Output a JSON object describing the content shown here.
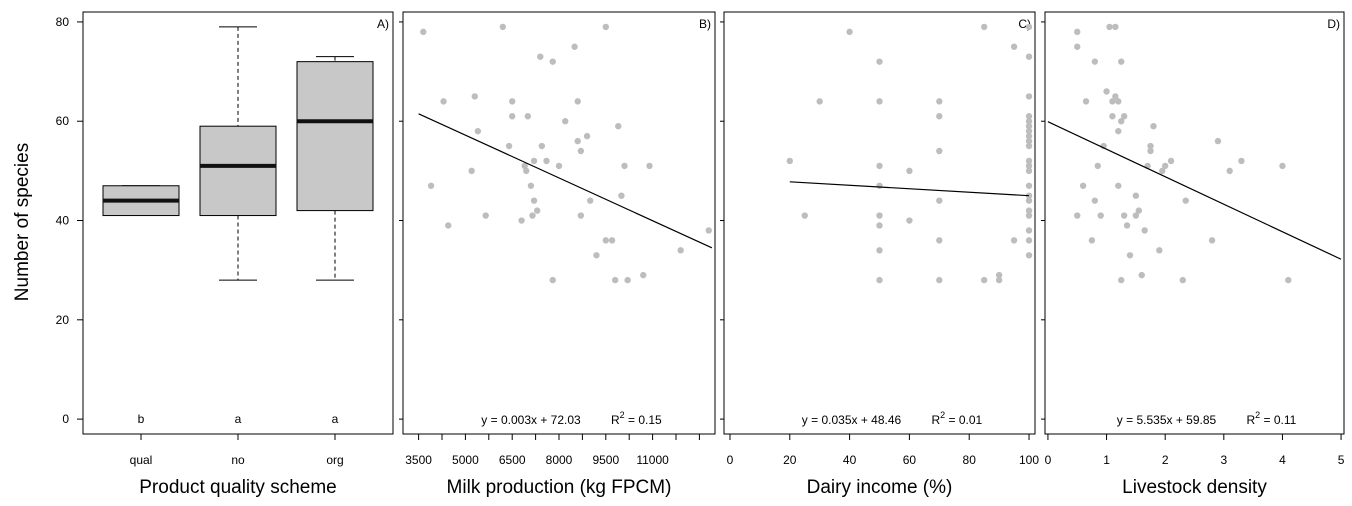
{
  "ylabel": "Number of species",
  "y_ticks": [
    "0",
    "20",
    "40",
    "60",
    "80"
  ],
  "chart_data": [
    {
      "type": "box",
      "panel": "A)",
      "xlabel": "Product quality scheme",
      "categories": [
        "qual",
        "no",
        "org"
      ],
      "ylim": [
        -3,
        82
      ],
      "boxes": [
        {
          "name": "qual",
          "min": 41,
          "q1": 41,
          "median": 44,
          "q3": 47,
          "max": 47,
          "letter": "b"
        },
        {
          "name": "no",
          "min": 28,
          "q1": 41,
          "median": 51,
          "q3": 59,
          "max": 79,
          "letter": "a"
        },
        {
          "name": "org",
          "min": 28,
          "q1": 42,
          "median": 60,
          "q3": 72,
          "max": 73,
          "letter": "a"
        }
      ]
    },
    {
      "type": "scatter",
      "panel": "B)",
      "xlabel": "Milk production (kg FPCM)",
      "xlim": [
        3000,
        13000
      ],
      "ylim": [
        -3,
        82
      ],
      "x_ticks": [
        3500,
        4250,
        5000,
        5750,
        6500,
        7250,
        8000,
        8750,
        9500,
        10250,
        11000,
        11750,
        12500
      ],
      "x_tick_labels": [
        "3500",
        "5000",
        "6500",
        "8000",
        "9500",
        "11000"
      ],
      "equation": "y =   0.003x + 72.03",
      "r2_label": "R",
      "r2_value": " = 0.15",
      "fit": {
        "x": [
          3500,
          12900
        ],
        "y": [
          61.5,
          34.5
        ]
      },
      "points": [
        [
          3650,
          78
        ],
        [
          3900,
          47
        ],
        [
          4300,
          64
        ],
        [
          4450,
          39
        ],
        [
          5200,
          50
        ],
        [
          5300,
          65
        ],
        [
          5400,
          58
        ],
        [
          5650,
          41
        ],
        [
          6200,
          79
        ],
        [
          6400,
          55
        ],
        [
          6500,
          64
        ],
        [
          6500,
          61
        ],
        [
          6800,
          40
        ],
        [
          6900,
          51
        ],
        [
          6950,
          50
        ],
        [
          7000,
          61
        ],
        [
          7100,
          47
        ],
        [
          7150,
          41
        ],
        [
          7200,
          52
        ],
        [
          7200,
          44
        ],
        [
          7300,
          42
        ],
        [
          7400,
          73
        ],
        [
          7450,
          55
        ],
        [
          7600,
          52
        ],
        [
          7800,
          72
        ],
        [
          7800,
          28
        ],
        [
          8000,
          51
        ],
        [
          8200,
          60
        ],
        [
          8500,
          75
        ],
        [
          8600,
          56
        ],
        [
          8600,
          64
        ],
        [
          8700,
          54
        ],
        [
          8700,
          41
        ],
        [
          8900,
          57
        ],
        [
          9000,
          44
        ],
        [
          9200,
          33
        ],
        [
          9500,
          36
        ],
        [
          9500,
          79
        ],
        [
          9700,
          36
        ],
        [
          9800,
          28
        ],
        [
          9900,
          59
        ],
        [
          10000,
          45
        ],
        [
          10100,
          51
        ],
        [
          10200,
          28
        ],
        [
          10700,
          29
        ],
        [
          10900,
          51
        ],
        [
          11900,
          34
        ],
        [
          12800,
          38
        ]
      ]
    },
    {
      "type": "scatter",
      "panel": "C)",
      "xlabel": "Dairy income (%)",
      "xlim": [
        -2,
        102
      ],
      "ylim": [
        -3,
        82
      ],
      "x_ticks": [
        0,
        20,
        40,
        60,
        80,
        100
      ],
      "x_tick_labels": [
        "0",
        "20",
        "40",
        "60",
        "80",
        "100"
      ],
      "equation": "y =   0.035x + 48.46",
      "r2_label": "R",
      "r2_value": " = 0.01",
      "fit": {
        "x": [
          20,
          100
        ],
        "y": [
          47.8,
          45
        ]
      },
      "points": [
        [
          20,
          52
        ],
        [
          25,
          41
        ],
        [
          30,
          64
        ],
        [
          40,
          78
        ],
        [
          50,
          72
        ],
        [
          50,
          64
        ],
        [
          50,
          51
        ],
        [
          50,
          47
        ],
        [
          50,
          41
        ],
        [
          50,
          39
        ],
        [
          50,
          34
        ],
        [
          50,
          28
        ],
        [
          60,
          50
        ],
        [
          60,
          40
        ],
        [
          70,
          64
        ],
        [
          70,
          61
        ],
        [
          70,
          54
        ],
        [
          70,
          44
        ],
        [
          70,
          36
        ],
        [
          70,
          28
        ],
        [
          85,
          79
        ],
        [
          85,
          28
        ],
        [
          90,
          29
        ],
        [
          90,
          28
        ],
        [
          95,
          75
        ],
        [
          95,
          36
        ],
        [
          100,
          79
        ],
        [
          100,
          73
        ],
        [
          100,
          65
        ],
        [
          100,
          61
        ],
        [
          100,
          60
        ],
        [
          100,
          59
        ],
        [
          100,
          58
        ],
        [
          100,
          57
        ],
        [
          100,
          56
        ],
        [
          100,
          55
        ],
        [
          100,
          52
        ],
        [
          100,
          51
        ],
        [
          100,
          50
        ],
        [
          100,
          47
        ],
        [
          100,
          45
        ],
        [
          100,
          44
        ],
        [
          100,
          42
        ],
        [
          100,
          41
        ],
        [
          100,
          38
        ],
        [
          100,
          36
        ],
        [
          100,
          33
        ]
      ]
    },
    {
      "type": "scatter",
      "panel": "D)",
      "xlabel": "Livestock density",
      "xlim": [
        -0.05,
        5.05
      ],
      "ylim": [
        -3,
        82
      ],
      "x_ticks": [
        0,
        1,
        2,
        3,
        4,
        5
      ],
      "x_tick_labels": [
        "0",
        "1",
        "2",
        "3",
        "4",
        "5"
      ],
      "equation": "y =   5.535x + 59.85",
      "r2_label": "R",
      "r2_value": " = 0.11",
      "fit": {
        "x": [
          0,
          5
        ],
        "y": [
          59.9,
          32.2
        ]
      },
      "points": [
        [
          0.5,
          78
        ],
        [
          0.5,
          75
        ],
        [
          0.5,
          41
        ],
        [
          0.6,
          47
        ],
        [
          0.65,
          64
        ],
        [
          0.75,
          36
        ],
        [
          0.8,
          44
        ],
        [
          0.8,
          72
        ],
        [
          0.85,
          51
        ],
        [
          0.9,
          41
        ],
        [
          0.95,
          55
        ],
        [
          1.0,
          66
        ],
        [
          1.05,
          79
        ],
        [
          1.1,
          64
        ],
        [
          1.1,
          61
        ],
        [
          1.15,
          79
        ],
        [
          1.15,
          65
        ],
        [
          1.2,
          64
        ],
        [
          1.2,
          58
        ],
        [
          1.2,
          47
        ],
        [
          1.25,
          72
        ],
        [
          1.25,
          60
        ],
        [
          1.25,
          28
        ],
        [
          1.3,
          41
        ],
        [
          1.3,
          61
        ],
        [
          1.35,
          39
        ],
        [
          1.4,
          33
        ],
        [
          1.5,
          45
        ],
        [
          1.5,
          41
        ],
        [
          1.55,
          42
        ],
        [
          1.6,
          29
        ],
        [
          1.65,
          38
        ],
        [
          1.7,
          51
        ],
        [
          1.75,
          55
        ],
        [
          1.75,
          54
        ],
        [
          1.8,
          59
        ],
        [
          1.9,
          34
        ],
        [
          1.95,
          50
        ],
        [
          2.0,
          51
        ],
        [
          2.1,
          52
        ],
        [
          2.3,
          28
        ],
        [
          2.35,
          44
        ],
        [
          2.8,
          36
        ],
        [
          2.9,
          56
        ],
        [
          3.1,
          50
        ],
        [
          3.3,
          52
        ],
        [
          4.0,
          51
        ],
        [
          4.1,
          28
        ]
      ]
    }
  ]
}
